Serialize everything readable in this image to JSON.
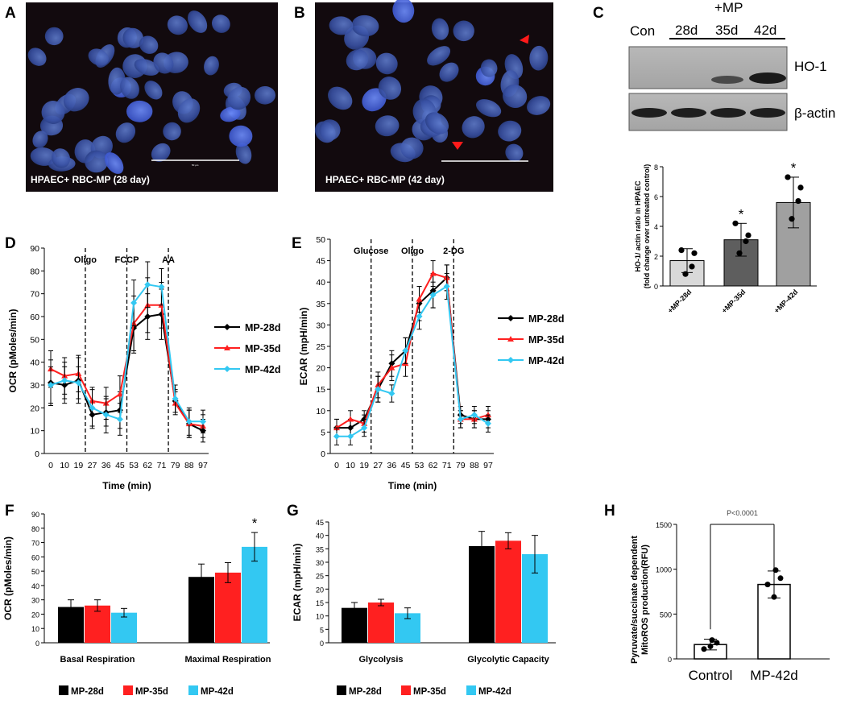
{
  "panel_letters": {
    "a": "A",
    "b": "B",
    "c": "C",
    "d": "D",
    "e": "E",
    "f": "F",
    "g": "G",
    "h": "H"
  },
  "micrographs": {
    "a_caption": "HPAEC+ RBC-MP (28 day)",
    "b_caption": "HPAEC+ RBC-MP (42 day)"
  },
  "blot": {
    "con_label": "Con",
    "mp_label": "+MP",
    "lanes": [
      "28d",
      "35d",
      "42d"
    ],
    "band1_label": "HO-1",
    "band2_label": "β-actin"
  },
  "colors": {
    "black": "#000000",
    "red": "#ff2020",
    "cyan": "#33c8f2",
    "c_bar1": "#d9d9d9",
    "c_bar2": "#5e5e5e",
    "c_bar3": "#a0a0a0"
  },
  "chart_data": [
    {
      "id": "C",
      "type": "bar",
      "title": "",
      "ylabel_line1": "HO-1/ actin ratio in HPAEC",
      "ylabel_line2": "(fold change over untreated control)",
      "categories": [
        "+MP-28d",
        "+MP-35d",
        "+MP-42d"
      ],
      "values": [
        1.7,
        3.1,
        5.6
      ],
      "errors": [
        0.8,
        1.1,
        1.7
      ],
      "points": [
        [
          2.4,
          1.3,
          0.8,
          2.2
        ],
        [
          4.2,
          3.0,
          2.2,
          3.4
        ],
        [
          7.3,
          5.7,
          4.5,
          6.6
        ]
      ],
      "significance": [
        "",
        "*",
        "*"
      ],
      "ylim": [
        0,
        8
      ],
      "yticks": [
        "0",
        "2",
        "4",
        "6",
        "8"
      ]
    },
    {
      "id": "D",
      "type": "line",
      "ylabel": "OCR (pMoles/min)",
      "xlabel": "Time (min)",
      "x_tick_labels": [
        "0",
        "10",
        "19",
        "27",
        "36",
        "45",
        "53",
        "62",
        "71",
        "79",
        "88",
        "97"
      ],
      "ylim": [
        0,
        90
      ],
      "yticks": [
        "0",
        "10",
        "20",
        "30",
        "40",
        "50",
        "60",
        "70",
        "80",
        "90"
      ],
      "injections": [
        {
          "label": "Oligo",
          "after_index": 2
        },
        {
          "label": "FCCP",
          "after_index": 5
        },
        {
          "label": "AA",
          "after_index": 8
        }
      ],
      "series": [
        {
          "name": "MP-28d",
          "values": [
            31,
            30,
            32,
            17,
            18,
            19,
            55,
            60,
            61,
            23,
            13,
            10
          ],
          "errors": [
            10,
            8,
            10,
            6,
            6,
            8,
            11,
            10,
            11,
            5,
            6,
            5
          ]
        },
        {
          "name": "MP-35d",
          "values": [
            37,
            34,
            35,
            23,
            22,
            26,
            57,
            65,
            65,
            22,
            13,
            12
          ],
          "errors": [
            8,
            8,
            8,
            6,
            7,
            8,
            12,
            12,
            10,
            5,
            6,
            5
          ]
        },
        {
          "name": "MP-42d",
          "values": [
            30,
            32,
            31,
            20,
            17,
            15,
            66,
            74,
            73,
            24,
            14,
            14
          ],
          "errors": [
            8,
            8,
            7,
            8,
            8,
            7,
            10,
            10,
            8,
            6,
            6,
            5
          ]
        }
      ]
    },
    {
      "id": "E",
      "type": "line",
      "ylabel": "ECAR (mpH/min)",
      "xlabel": "Time (min)",
      "x_tick_labels": [
        "0",
        "10",
        "19",
        "27",
        "36",
        "45",
        "53",
        "62",
        "71",
        "79",
        "88",
        "97"
      ],
      "ylim": [
        0,
        50
      ],
      "yticks": [
        "0",
        "5",
        "10",
        "15",
        "20",
        "25",
        "30",
        "35",
        "40",
        "45",
        "50"
      ],
      "injections": [
        {
          "label": "Glucose",
          "after_index": 2
        },
        {
          "label": "Oligo",
          "after_index": 5
        },
        {
          "label": "2-DG",
          "after_index": 8
        }
      ],
      "series": [
        {
          "name": "MP-28d",
          "values": [
            6,
            6,
            8,
            15,
            21,
            24,
            35,
            38,
            41,
            9,
            8,
            8
          ],
          "errors": [
            2,
            2,
            2,
            3,
            3,
            3,
            4,
            4,
            3,
            2,
            2,
            2
          ]
        },
        {
          "name": "MP-35d",
          "values": [
            6,
            8,
            7,
            16,
            20,
            21,
            36,
            42,
            41,
            8,
            8,
            9
          ],
          "errors": [
            2,
            2,
            2,
            3,
            3,
            3,
            3,
            3,
            3,
            2,
            2,
            2
          ]
        },
        {
          "name": "MP-42d",
          "values": [
            4,
            4,
            6,
            15,
            14,
            24,
            32,
            37,
            39,
            8,
            9,
            7
          ],
          "errors": [
            2,
            2,
            2,
            3,
            2,
            3,
            3,
            3,
            3,
            2,
            2,
            2
          ]
        }
      ]
    },
    {
      "id": "F",
      "type": "bar",
      "ylabel": "OCR (pMoles/min)",
      "categories": [
        "Basal Respiration",
        "Maximal Respiration"
      ],
      "ylim": [
        0,
        90
      ],
      "yticks": [
        "0",
        "10",
        "20",
        "30",
        "40",
        "50",
        "60",
        "70",
        "80",
        "90"
      ],
      "series": [
        {
          "name": "MP-28d",
          "values": [
            25,
            46
          ],
          "errors": [
            5,
            9
          ]
        },
        {
          "name": "MP-35d",
          "values": [
            26,
            49
          ],
          "errors": [
            4,
            7
          ]
        },
        {
          "name": "MP-42d",
          "values": [
            21,
            67
          ],
          "errors": [
            3,
            10
          ]
        }
      ],
      "significance_label": "*"
    },
    {
      "id": "G",
      "type": "bar",
      "ylabel": "ECAR (mpH/min)",
      "categories": [
        "Glycolysis",
        "Glycolytic Capacity"
      ],
      "ylim": [
        0,
        45
      ],
      "yticks": [
        "0",
        "5",
        "10",
        "15",
        "20",
        "25",
        "30",
        "35",
        "40",
        "45"
      ],
      "series": [
        {
          "name": "MP-28d",
          "values": [
            13,
            36
          ],
          "errors": [
            2,
            5.5
          ]
        },
        {
          "name": "MP-35d",
          "values": [
            15,
            38
          ],
          "errors": [
            1.2,
            3
          ]
        },
        {
          "name": "MP-42d",
          "values": [
            11,
            33
          ],
          "errors": [
            2,
            7
          ]
        }
      ]
    },
    {
      "id": "H",
      "type": "bar",
      "ylabel_line1": "Pyruvate/succinate dependent",
      "ylabel_line2": "MitoROS production(RFU)",
      "categories": [
        "Control",
        "MP-42d"
      ],
      "values": [
        160,
        830
      ],
      "errors": [
        60,
        150
      ],
      "points": [
        [
          210,
          110,
          140,
          180
        ],
        [
          990,
          830,
          690,
          900
        ]
      ],
      "ylim": [
        0,
        1500
      ],
      "yticks": [
        "0",
        "500",
        "1000",
        "1500"
      ],
      "p_value": "P<0.0001"
    }
  ]
}
